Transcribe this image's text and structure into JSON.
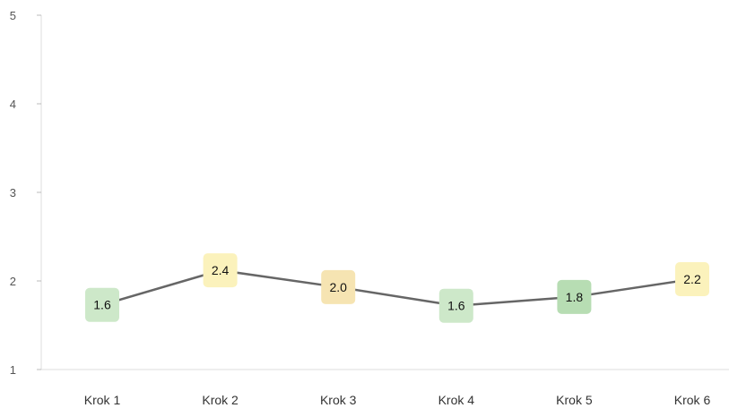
{
  "chart_data": {
    "type": "line",
    "categories": [
      "Krok 1",
      "Krok 2",
      "Krok 3",
      "Krok 4",
      "Krok 5",
      "Krok 6"
    ],
    "series": [
      {
        "values": [
          1.6,
          2.4,
          2.0,
          1.6,
          1.8,
          2.2
        ],
        "labels": [
          "1.6",
          "2.4",
          "2.0",
          "1.6",
          "1.8",
          "2.2"
        ],
        "line_values": [
          1.73,
          2.12,
          1.93,
          1.72,
          1.82,
          2.02
        ],
        "marker_colors": [
          "#cde8c9",
          "#fbf2bc",
          "#f6e4b2",
          "#cde8c9",
          "#b7ddb3",
          "#fbf2bc"
        ]
      }
    ],
    "ylim": [
      1,
      5
    ],
    "yticks": [
      1,
      2,
      3,
      4,
      5
    ],
    "title": "",
    "xlabel": "",
    "ylabel": "",
    "grid": false,
    "colors": {
      "line": "#666666",
      "axis": "#dddddd"
    }
  }
}
